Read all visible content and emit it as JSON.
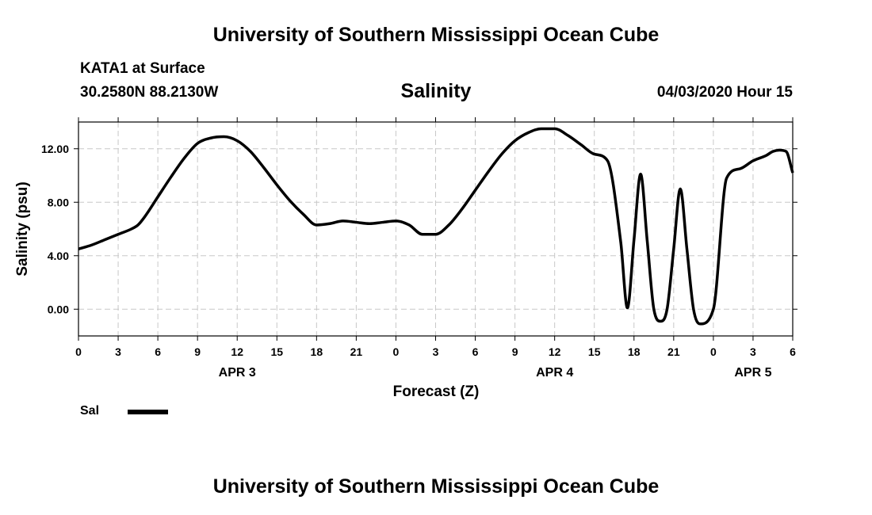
{
  "header": {
    "top_title": "University of Southern Mississippi Ocean Cube",
    "station": "KATA1 at Surface",
    "coords": "30.2580N 88.2130W",
    "date": "04/03/2020 Hour 15",
    "bottom_title": "University of Southern Mississippi Ocean Cube"
  },
  "chart_data": {
    "type": "line",
    "title": "Salinity",
    "xlabel": "Forecast (Z)",
    "ylabel": "Salinity (psu)",
    "xlim": [
      0,
      54
    ],
    "ylim": [
      -2,
      14
    ],
    "yticks": [
      0,
      4,
      8,
      12
    ],
    "ytick_labels": [
      "0.00",
      "4.00",
      "8.00",
      "12.00"
    ],
    "xticks": [
      0,
      3,
      6,
      9,
      12,
      15,
      18,
      21,
      24,
      27,
      30,
      33,
      36,
      39,
      42,
      45,
      48,
      51,
      54
    ],
    "xtick_labels": [
      "0",
      "3",
      "6",
      "9",
      "12",
      "15",
      "18",
      "21",
      "0",
      "3",
      "6",
      "9",
      "12",
      "15",
      "18",
      "21",
      "0",
      "3",
      "6"
    ],
    "date_labels": [
      {
        "x": 12,
        "text": "APR 3"
      },
      {
        "x": 36,
        "text": "APR 4"
      },
      {
        "x": 51,
        "text": "APR 5"
      }
    ],
    "grid": true,
    "legend": "bottom-left",
    "line_color": "#000000",
    "series": [
      {
        "name": "Sal",
        "x": [
          0,
          1,
          2,
          3,
          4,
          4.5,
          5,
          6,
          7,
          8,
          9,
          10,
          11,
          12,
          13,
          14,
          15,
          16,
          17,
          18,
          19,
          20,
          21,
          22,
          23,
          24,
          25,
          26,
          27,
          28,
          29,
          30,
          31,
          32,
          33,
          34,
          35,
          36,
          37,
          38,
          39,
          40,
          41,
          41.5,
          42,
          42.5,
          43,
          43.5,
          44,
          44.5,
          45,
          45.5,
          46,
          46.5,
          47,
          48,
          49,
          50,
          51,
          52,
          52.5,
          53,
          53.5,
          54
        ],
        "y": [
          4.5,
          4.8,
          5.2,
          5.6,
          6.0,
          6.3,
          6.9,
          8.4,
          9.9,
          11.3,
          12.4,
          12.8,
          12.9,
          12.6,
          11.8,
          10.6,
          9.3,
          8.1,
          7.1,
          6.3,
          6.4,
          6.6,
          6.5,
          6.4,
          6.5,
          6.6,
          6.3,
          5.6,
          5.6,
          6.3,
          7.5,
          8.9,
          10.3,
          11.6,
          12.6,
          13.2,
          13.5,
          13.5,
          13.0,
          12.3,
          11.6,
          11.1,
          5.0,
          0.1,
          5.2,
          10.1,
          5.1,
          0.0,
          -0.9,
          0.0,
          4.5,
          9.0,
          4.5,
          0.0,
          -1.1,
          0.0,
          9.8,
          10.5,
          11.1,
          11.5,
          11.8,
          11.9,
          11.8,
          10.2
        ]
      }
    ]
  }
}
